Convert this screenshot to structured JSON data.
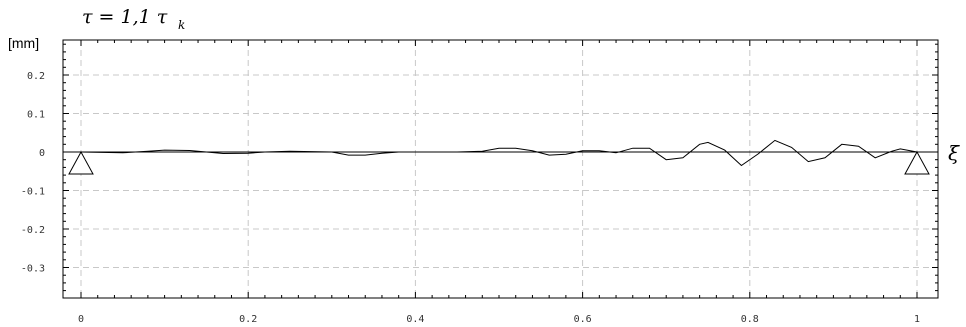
{
  "chart_data": {
    "type": "line",
    "title": {
      "main": "τ = 1,1  τ",
      "sub": "k"
    },
    "ylabel": "[mm]",
    "xlabel": "ξ",
    "xlim": [
      0,
      1
    ],
    "ylim": [
      -0.4,
      0.3
    ],
    "x_ticks": [
      "0",
      "0.2",
      "0.4",
      "0.6",
      "0.8",
      "1"
    ],
    "x_tick_values": [
      0,
      0.2,
      0.4,
      0.6,
      0.8,
      1
    ],
    "y_ticks": [
      "0.2",
      "0.1",
      "0",
      "-0.1",
      "-0.2",
      "-0.3"
    ],
    "y_tick_values": [
      0.2,
      0.1,
      0,
      -0.1,
      -0.2,
      -0.3
    ],
    "grid": true,
    "supports": [
      0,
      1
    ],
    "series": [
      {
        "x": [
          0,
          0.05,
          0.08,
          0.1,
          0.13,
          0.15,
          0.17,
          0.2,
          0.22,
          0.25,
          0.3,
          0.32,
          0.34,
          0.36,
          0.38,
          0.4,
          0.45,
          0.48,
          0.5,
          0.52,
          0.54,
          0.56,
          0.58,
          0.6,
          0.62,
          0.64,
          0.66,
          0.68,
          0.7,
          0.72,
          0.74,
          0.75,
          0.77,
          0.79,
          0.81,
          0.83,
          0.85,
          0.87,
          0.89,
          0.91,
          0.93,
          0.95,
          0.97,
          0.98,
          1
        ],
        "y": [
          0,
          -0.002,
          0.002,
          0.005,
          0.004,
          0,
          -0.004,
          -0.003,
          0,
          0.002,
          0,
          -0.008,
          -0.008,
          -0.003,
          0,
          0,
          0,
          0.002,
          0.01,
          0.01,
          0.003,
          -0.008,
          -0.006,
          0.003,
          0.003,
          -0.002,
          0.01,
          0.01,
          -0.02,
          -0.015,
          0.02,
          0.025,
          0.005,
          -0.035,
          -0.005,
          0.03,
          0.012,
          -0.025,
          -0.015,
          0.02,
          0.015,
          -0.015,
          0.002,
          0.008,
          0
        ]
      }
    ]
  }
}
